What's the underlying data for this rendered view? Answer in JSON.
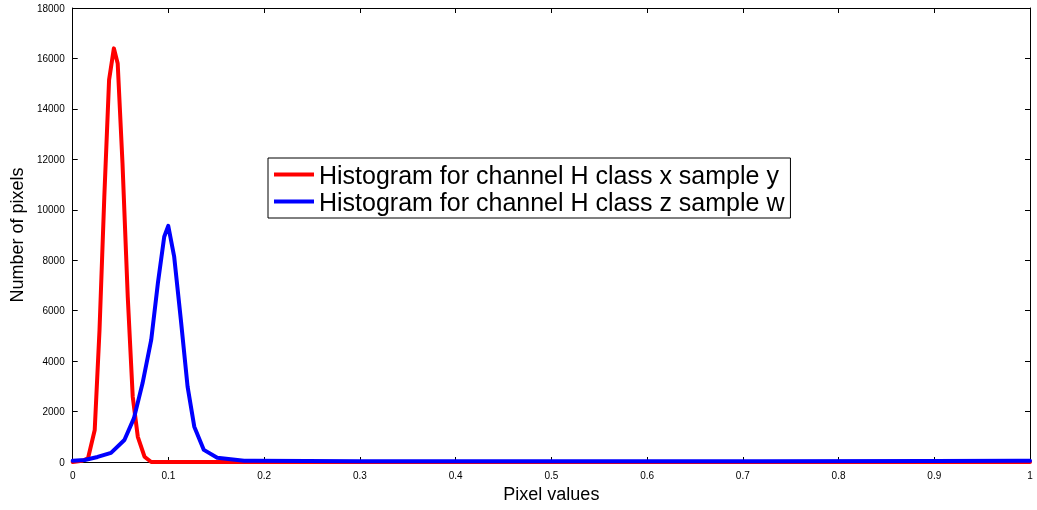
{
  "chart_data": {
    "type": "line",
    "xlabel": "Pixel values",
    "ylabel": "Number of pixels",
    "xlim": [
      0,
      1
    ],
    "xticks": [
      0,
      0.1,
      0.2,
      0.3,
      0.4,
      0.5,
      0.6,
      0.7,
      0.8,
      0.9,
      1
    ],
    "ylim": [
      0,
      18000
    ],
    "yticks": [
      0,
      2000,
      4000,
      6000,
      8000,
      10000,
      12000,
      14000,
      16000,
      18000
    ],
    "grid": false,
    "legend": "top",
    "marker": "none",
    "line_style": "solid",
    "series": [
      {
        "name": "Histogram for channel H class x sample y",
        "color": "#ff0000",
        "x": [
          0,
          0.01,
          0.016,
          0.023,
          0.028,
          0.033,
          0.038,
          0.043,
          0.047,
          0.052,
          0.0575,
          0.0627,
          0.068,
          0.075,
          0.082,
          0.1,
          0.15,
          0.2,
          0.3,
          0.5,
          0.7,
          0.9,
          1
        ],
        "values": [
          0,
          50,
          150,
          1270,
          5230,
          10500,
          15150,
          16400,
          15800,
          11850,
          6550,
          2590,
          1000,
          210,
          0,
          0,
          0,
          0,
          0,
          0,
          0,
          0,
          0
        ]
      },
      {
        "name": "Histogram for channel H class z sample w",
        "color": "#0000ff",
        "x": [
          0,
          0.0125,
          0.026,
          0.04,
          0.054,
          0.064,
          0.073,
          0.082,
          0.089,
          0.0956,
          0.0998,
          0.106,
          0.113,
          0.12,
          0.127,
          0.137,
          0.151,
          0.179,
          0.3,
          0.5,
          0.7,
          0.9,
          1
        ],
        "values": [
          50,
          80,
          200,
          360,
          870,
          1740,
          3130,
          4840,
          7100,
          8930,
          9360,
          8140,
          5630,
          2990,
          1400,
          480,
          170,
          50,
          30,
          30,
          30,
          40,
          50
        ]
      }
    ]
  }
}
